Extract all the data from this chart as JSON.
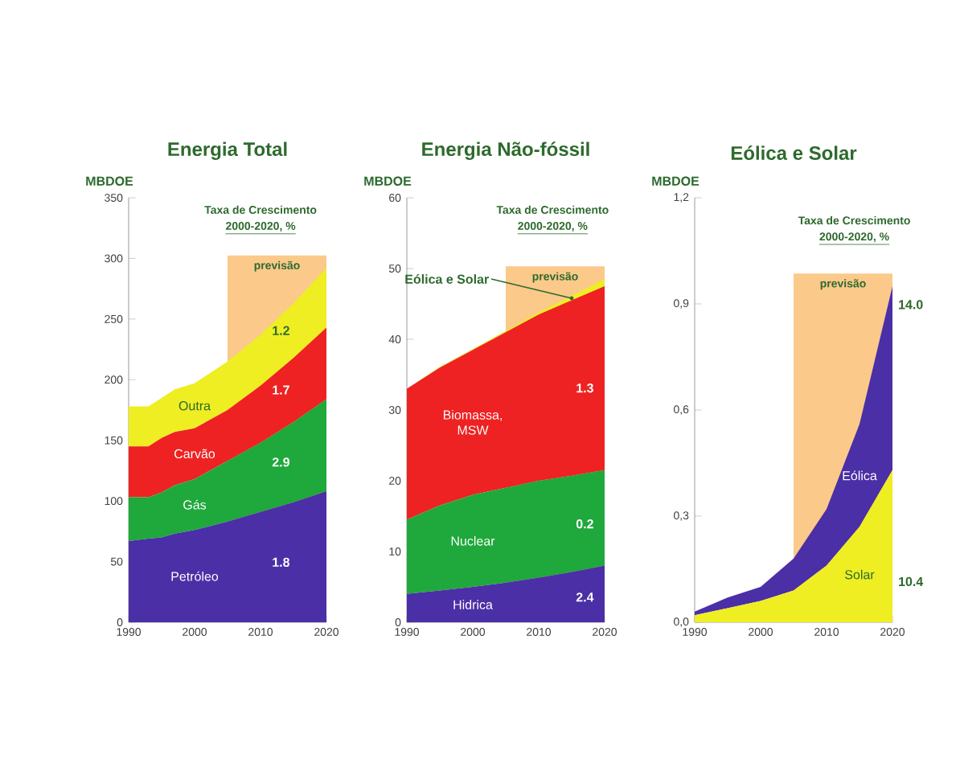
{
  "chart_data": [
    {
      "type": "area",
      "stacked": true,
      "title": "Energia Total",
      "subtitle": "Taxa de Crescimento",
      "ylabel": "MBDOE",
      "x": [
        1990,
        1993,
        1995,
        1997,
        2000,
        2005,
        2010,
        2015,
        2020
      ],
      "xlim": [
        1990,
        2020
      ],
      "xticks": [
        1990,
        2000,
        2010,
        2020
      ],
      "ylim": [
        0,
        350
      ],
      "yticks": [
        0,
        50,
        100,
        150,
        200,
        250,
        300,
        350
      ],
      "series": [
        {
          "name": "Petróleo",
          "color": "#4b2fa6",
          "values": [
            67,
            69,
            70,
            73,
            76,
            83,
            91,
            99,
            108
          ]
        },
        {
          "name": "Gás",
          "color": "#1fa83c",
          "values": [
            36,
            34,
            37,
            40,
            42,
            50,
            57,
            66,
            76
          ]
        },
        {
          "name": "Carvão",
          "color": "#ee2222",
          "values": [
            42,
            42,
            45,
            44,
            42,
            42,
            47,
            53,
            59
          ]
        },
        {
          "name": "Outra",
          "color": "#eeee22",
          "values": [
            33,
            33,
            33,
            35,
            37,
            40,
            42,
            45,
            49
          ]
        }
      ],
      "bands": [
        {
          "axis": "x",
          "from": 2005,
          "to": 2020,
          "label": "previsão",
          "color": "#fbc98a"
        }
      ],
      "annotations": [
        "2000-2020, %",
        "1.8",
        "2.9",
        "1.7",
        "1.2"
      ]
    },
    {
      "type": "area",
      "stacked": true,
      "title": "Energia Não-fóssil",
      "subtitle": "Taxa de Crescimento",
      "ylabel": "MBDOE",
      "x": [
        1990,
        1995,
        2000,
        2005,
        2010,
        2015,
        2020
      ],
      "xlim": [
        1990,
        2020
      ],
      "xticks": [
        1990,
        2000,
        2010,
        2020
      ],
      "ylim": [
        0,
        60
      ],
      "yticks": [
        0,
        10,
        20,
        30,
        40,
        50,
        60
      ],
      "series": [
        {
          "name": "Hidrica",
          "color": "#4b2fa6",
          "values": [
            4,
            4.5,
            5,
            5.6,
            6.3,
            7.1,
            8
          ]
        },
        {
          "name": "Nuclear",
          "color": "#1fa83c",
          "values": [
            10.5,
            12,
            13,
            13.4,
            13.7,
            13.6,
            13.5
          ]
        },
        {
          "name": "Biomassa, MSW",
          "color": "#ee2222",
          "values": [
            18.5,
            19.5,
            20.5,
            22,
            23.5,
            24.8,
            26
          ]
        },
        {
          "name": "Eólica e Solar",
          "color": "#eeee22",
          "values": [
            0,
            0.1,
            0.1,
            0.2,
            0.3,
            0.6,
            1
          ]
        }
      ],
      "bands": [
        {
          "axis": "x",
          "from": 2005,
          "to": 2020,
          "label": "previsão",
          "color": "#fbc98a"
        }
      ],
      "annotations": [
        "2000-2020, %",
        "2.4",
        "0.2",
        "1.3"
      ]
    },
    {
      "type": "area",
      "stacked": true,
      "title": "Eólica e Solar",
      "subtitle": "Taxa de Crescimento",
      "ylabel": "MBDOE",
      "x": [
        1990,
        1995,
        2000,
        2005,
        2010,
        2015,
        2020
      ],
      "xlim": [
        1990,
        2020
      ],
      "xticks": [
        1990,
        2000,
        2010,
        2020
      ],
      "ylim": [
        0,
        1.2
      ],
      "yticks": [
        {
          "value": 0,
          "label": "0,0"
        },
        {
          "value": 0.3,
          "label": "0,3"
        },
        {
          "value": 0.6,
          "label": "0,6"
        },
        {
          "value": 0.9,
          "label": "0,9"
        },
        {
          "value": 1.2,
          "label": "1,2"
        }
      ],
      "series": [
        {
          "name": "Solar",
          "color": "#eeee22",
          "values": [
            0.02,
            0.04,
            0.06,
            0.09,
            0.16,
            0.27,
            0.43
          ]
        },
        {
          "name": "Eólica",
          "color": "#4b2fa6",
          "values": [
            0.01,
            0.03,
            0.04,
            0.09,
            0.16,
            0.29,
            0.52
          ]
        }
      ],
      "bands": [
        {
          "axis": "x",
          "from": 2005,
          "to": 2020,
          "label": "previsão",
          "color": "#fbc98a"
        }
      ],
      "annotations": [
        "2000-2020, %",
        "10.4",
        "14.0"
      ]
    }
  ]
}
